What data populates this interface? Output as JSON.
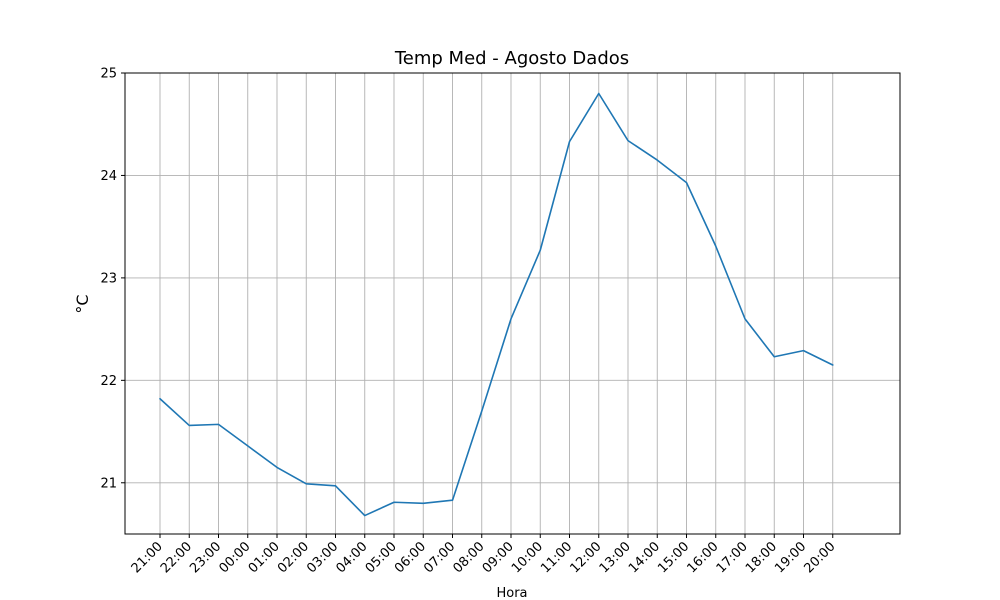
{
  "chart_data": {
    "type": "line",
    "title": "Temp Med - Agosto Dados",
    "xlabel": "Hora",
    "ylabel": "°C",
    "x_tick_labels": [
      "21:00",
      "22:00",
      "23:00",
      "00:00",
      "01:00",
      "02:00",
      "03:00",
      "04:00",
      "05:00",
      "06:00",
      "07:00",
      "08:00",
      "09:00",
      "10:00",
      "11:00",
      "12:00",
      "13:00",
      "14:00",
      "15:00",
      "16:00",
      "17:00",
      "18:00",
      "19:00",
      "20:00"
    ],
    "y_ticks": [
      21,
      22,
      23,
      24,
      25
    ],
    "ylim": [
      20.5,
      25.0
    ],
    "grid": true,
    "series": [
      {
        "color": "#1f77b4",
        "values": [
          21.82,
          21.56,
          21.57,
          21.36,
          21.15,
          20.99,
          20.97,
          20.68,
          20.81,
          20.8,
          20.83,
          21.7,
          22.6,
          23.27,
          24.33,
          24.8,
          24.34,
          24.15,
          23.93,
          23.31,
          22.6,
          22.23,
          22.29,
          22.15
        ]
      }
    ]
  }
}
